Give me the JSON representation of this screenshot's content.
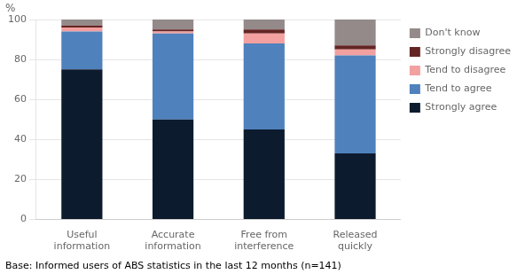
{
  "chart_data": {
    "type": "bar",
    "stacked": true,
    "categories": [
      "Useful\ninformation",
      "Accurate\ninformation",
      "Free from\ninterference",
      "Released\nquickly"
    ],
    "series": [
      {
        "name": "Strongly agree",
        "color": "#0d1b2e",
        "values": [
          75,
          50,
          45,
          33
        ]
      },
      {
        "name": "Tend to agree",
        "color": "#4f81bd",
        "values": [
          19,
          43,
          43,
          49
        ]
      },
      {
        "name": "Tend to disagree",
        "color": "#f2a0a0",
        "values": [
          2,
          1,
          5,
          3
        ]
      },
      {
        "name": "Strongly disagree",
        "color": "#632523",
        "values": [
          1,
          1,
          2,
          2
        ]
      },
      {
        "name": "Don't know",
        "color": "#948a8a",
        "values": [
          3,
          5,
          5,
          13
        ]
      }
    ],
    "ylabel": "%",
    "ylim": [
      0,
      100
    ],
    "yticks": [
      0,
      20,
      40,
      60,
      80,
      100
    ],
    "grid": true,
    "legend": "right",
    "footnote": "Base: Informed users of ABS statistics in the last 12 months (n=141)"
  }
}
